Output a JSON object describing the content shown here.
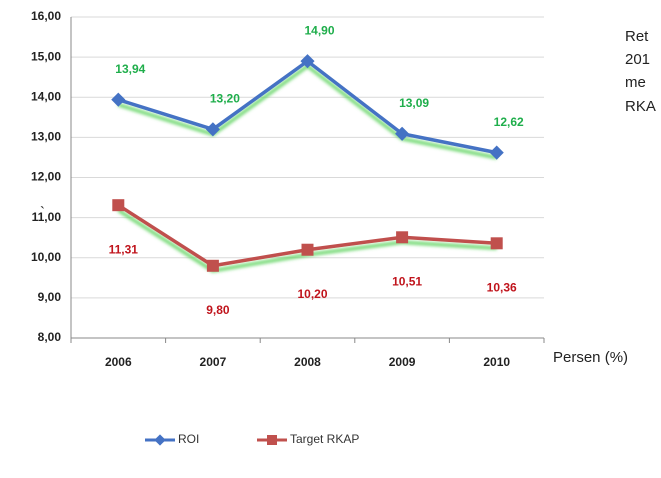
{
  "chart_data": {
    "type": "line",
    "categories": [
      "2006",
      "2007",
      "2008",
      "2009",
      "2010"
    ],
    "series": [
      {
        "name": "ROI",
        "color": "#4472c4",
        "values": [
          13.94,
          13.2,
          14.9,
          13.09,
          12.62
        ],
        "value_labels": [
          "13,94",
          "13,20",
          "14,90",
          "13,09",
          "12,62"
        ],
        "label_color": "#1fae4b"
      },
      {
        "name": "Target RKAP",
        "color": "#c0504d",
        "values": [
          11.31,
          9.8,
          10.2,
          10.51,
          10.36
        ],
        "value_labels": [
          "11,31",
          "9,80",
          "10,20",
          "10,51",
          "10,36"
        ],
        "label_color": "#c0141c"
      }
    ],
    "ylim": [
      8,
      16
    ],
    "yticks": [
      {
        "value": 8,
        "label": "8,00"
      },
      {
        "value": 9,
        "label": "9,00"
      },
      {
        "value": 10,
        "label": "10,00"
      },
      {
        "value": 11,
        "label": "11,00"
      },
      {
        "value": 12,
        "label": "12,00"
      },
      {
        "value": 13,
        "label": "13,00"
      },
      {
        "value": 14,
        "label": "14,00"
      },
      {
        "value": 15,
        "label": "15,00"
      },
      {
        "value": 16,
        "label": "16,00"
      }
    ],
    "grid": true,
    "legend": "bottom",
    "annotations": [
      "Ret",
      "201",
      "me",
      "RKA",
      "Persen (%)",
      "`"
    ]
  }
}
